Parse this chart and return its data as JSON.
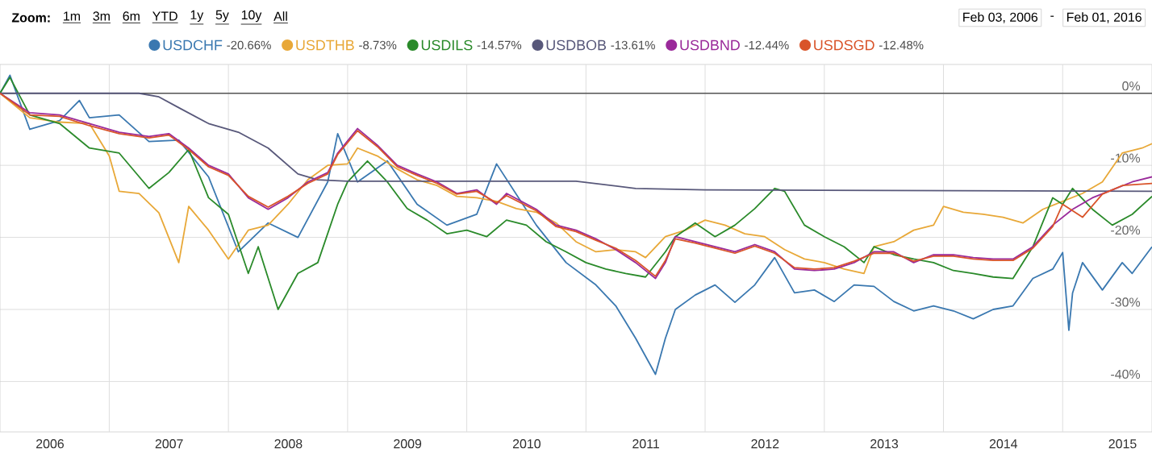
{
  "chart_data": {
    "type": "line",
    "xlim": [
      "2006-02",
      "2015-10"
    ],
    "ylim": [
      -47,
      4
    ],
    "xticks": [
      {
        "value": "2006-07-02",
        "label": "2006"
      },
      {
        "value": "2007-07-02",
        "label": "2007"
      },
      {
        "value": "2008-07-02",
        "label": "2008"
      },
      {
        "value": "2009-07-02",
        "label": "2009"
      },
      {
        "value": "2010-07-02",
        "label": "2010"
      },
      {
        "value": "2011-07-02",
        "label": "2011"
      },
      {
        "value": "2012-07-02",
        "label": "2012"
      },
      {
        "value": "2013-07-02",
        "label": "2013"
      },
      {
        "value": "2014-07-02",
        "label": "2014"
      },
      {
        "value": "2015-07-02",
        "label": "2015"
      },
      {
        "value": "2007-01-01",
        "label": null
      },
      {
        "value": "2008-01-01",
        "label": null
      },
      {
        "value": "2009-01-01",
        "label": null
      },
      {
        "value": "2010-01-01",
        "label": null
      },
      {
        "value": "2011-01-01",
        "label": null
      },
      {
        "value": "2012-01-01",
        "label": null
      },
      {
        "value": "2013-01-01",
        "label": null
      },
      {
        "value": "2014-01-01",
        "label": null
      },
      {
        "value": "2015-01-01",
        "label": null
      }
    ],
    "yticks": [
      {
        "value": 0,
        "label": "0%"
      },
      {
        "value": -10,
        "label": "-10%"
      },
      {
        "value": -20,
        "label": "-20%"
      },
      {
        "value": -30,
        "label": "-30%"
      },
      {
        "value": -40,
        "label": "-40%"
      }
    ],
    "grid": true,
    "legend": "top",
    "marker": "none",
    "line_style": "solid",
    "ref_lines": [
      {
        "axis": "y",
        "value": 0,
        "color": "#555555"
      }
    ],
    "annotations": [
      "-20.66%",
      "-8.73%",
      "-14.57%",
      "-13.61%",
      "-12.44%",
      "-12.48%",
      "Zoom:",
      "1m",
      "3m",
      "6m",
      "YTD",
      "1y",
      "5y",
      "10y",
      "All",
      "Feb 03, 2006",
      "-",
      "Feb 01, 2016"
    ],
    "series": [
      {
        "name": "USDCHF",
        "color": "#3a78b0",
        "x": [
          "2006-02",
          "2006-03",
          "2006-05",
          "2006-08",
          "2006-10",
          "2006-11",
          "2007-02",
          "2007-05",
          "2007-08",
          "2007-11",
          "2008-02",
          "2008-05",
          "2008-08",
          "2008-11",
          "2008-12",
          "2009-02",
          "2009-05",
          "2009-08",
          "2009-11",
          "2010-02",
          "2010-04",
          "2010-08",
          "2010-11",
          "2011-02",
          "2011-04",
          "2011-06",
          "2011-08",
          "2011-09",
          "2011-10",
          "2011-12",
          "2012-02",
          "2012-04",
          "2012-06",
          "2012-08",
          "2012-10",
          "2012-12",
          "2013-02",
          "2013-04",
          "2013-06",
          "2013-08",
          "2013-10",
          "2013-12",
          "2014-02",
          "2014-04",
          "2014-06",
          "2014-08",
          "2014-10",
          "2014-12",
          "2015-01",
          "2015-01-20",
          "2015-02",
          "2015-03",
          "2015-05",
          "2015-07",
          "2015-08",
          "2015-10"
        ],
        "values": [
          0,
          2.5,
          -5,
          -3.8,
          -1,
          -3.4,
          -3,
          -6.7,
          -6.5,
          -11.6,
          -22,
          -18,
          -20,
          -12.3,
          -5.6,
          -12.3,
          -9.4,
          -15.4,
          -18.3,
          -16.8,
          -9.8,
          -18.3,
          -23.5,
          -26.6,
          -29.5,
          -34,
          -39,
          -34,
          -30,
          -28,
          -26.6,
          -29,
          -26.6,
          -22.8,
          -27.7,
          -27.3,
          -28.9,
          -26.6,
          -26.8,
          -28.9,
          -30.2,
          -29.5,
          -30.2,
          -31.3,
          -30,
          -29.5,
          -25.7,
          -24.4,
          -22.1,
          -32.9,
          -27.7,
          -23.5,
          -27.3,
          -23.5,
          -25,
          -21.3
        ]
      },
      {
        "name": "USDTHB",
        "color": "#e8a838",
        "x": [
          "2006-02",
          "2006-05",
          "2006-08",
          "2006-11",
          "2007-01",
          "2007-02",
          "2007-04",
          "2007-06",
          "2007-08",
          "2007-09",
          "2007-11",
          "2008-01",
          "2008-03",
          "2008-05",
          "2008-07",
          "2008-09",
          "2008-11",
          "2009-01",
          "2009-02",
          "2009-04",
          "2009-06",
          "2009-08",
          "2009-10",
          "2009-12",
          "2010-02",
          "2010-04",
          "2010-06",
          "2010-08",
          "2010-10",
          "2010-12",
          "2011-02",
          "2011-04",
          "2011-06",
          "2011-07",
          "2011-09",
          "2011-11",
          "2012-01",
          "2012-03",
          "2012-05",
          "2012-07",
          "2012-09",
          "2012-11",
          "2013-01",
          "2013-03",
          "2013-05",
          "2013-06",
          "2013-08",
          "2013-10",
          "2013-12",
          "2014-01",
          "2014-03",
          "2014-05",
          "2014-07",
          "2014-09",
          "2014-11",
          "2015-01",
          "2015-03",
          "2015-05",
          "2015-07",
          "2015-09",
          "2015-10"
        ],
        "values": [
          0,
          -3.4,
          -4,
          -4.2,
          -8.7,
          -13.6,
          -13.9,
          -16.6,
          -23.5,
          -15.7,
          -19,
          -23,
          -19,
          -18.3,
          -15.4,
          -12,
          -10,
          -9.8,
          -7.6,
          -8.7,
          -10.5,
          -12,
          -12.8,
          -14.3,
          -14.5,
          -15,
          -16,
          -16.5,
          -18,
          -20.6,
          -22,
          -21.7,
          -22,
          -22.8,
          -19.9,
          -19,
          -17.6,
          -18.3,
          -19.5,
          -19.9,
          -21.7,
          -23,
          -23.5,
          -24.4,
          -25,
          -21.3,
          -20.6,
          -19,
          -18.3,
          -15.7,
          -16.5,
          -16.8,
          -17.2,
          -18,
          -16.1,
          -15,
          -13.9,
          -12.3,
          -8.3,
          -7.6,
          -7
        ]
      },
      {
        "name": "USDILS",
        "color": "#2a8a2a",
        "x": [
          "2006-02",
          "2006-03",
          "2006-05",
          "2006-08",
          "2006-11",
          "2007-02",
          "2007-05",
          "2007-07",
          "2007-09",
          "2007-11",
          "2008-01",
          "2008-03",
          "2008-04",
          "2008-06",
          "2008-08",
          "2008-10",
          "2008-12",
          "2009-01",
          "2009-03",
          "2009-05",
          "2009-07",
          "2009-09",
          "2009-11",
          "2010-01",
          "2010-03",
          "2010-05",
          "2010-07",
          "2010-09",
          "2010-11",
          "2011-01",
          "2011-03",
          "2011-05",
          "2011-07",
          "2011-09",
          "2011-10",
          "2011-12",
          "2012-02",
          "2012-04",
          "2012-06",
          "2012-08",
          "2012-09",
          "2012-11",
          "2013-01",
          "2013-03",
          "2013-05",
          "2013-06",
          "2013-08",
          "2013-10",
          "2013-12",
          "2014-02",
          "2014-04",
          "2014-06",
          "2014-08",
          "2014-10",
          "2014-12",
          "2015-01",
          "2015-02",
          "2015-04",
          "2015-06",
          "2015-08",
          "2015-10"
        ],
        "values": [
          0,
          2.2,
          -3,
          -4.2,
          -7.6,
          -8.3,
          -13.2,
          -11,
          -7.8,
          -14.5,
          -16.8,
          -25,
          -21.3,
          -30,
          -25,
          -23.5,
          -15.4,
          -12.3,
          -9.4,
          -12.3,
          -16,
          -17.6,
          -19.5,
          -19,
          -19.9,
          -17.6,
          -18.3,
          -20.6,
          -22,
          -23.5,
          -24.4,
          -25,
          -25.5,
          -22,
          -19.9,
          -18,
          -19.9,
          -18.3,
          -16,
          -13.2,
          -13.6,
          -18.3,
          -19.9,
          -21.3,
          -23.5,
          -21.3,
          -22.4,
          -23,
          -23.5,
          -24.6,
          -25,
          -25.5,
          -25.7,
          -21.3,
          -14.5,
          -15.4,
          -13.2,
          -16.1,
          -18.3,
          -16.8,
          -14.3
        ]
      },
      {
        "name": "USDBOB",
        "color": "#58587a",
        "x": [
          "2006-02",
          "2007-04",
          "2007-06",
          "2007-08",
          "2007-11",
          "2008-02",
          "2008-05",
          "2008-08",
          "2008-10",
          "2009-01",
          "2010-12",
          "2011-06",
          "2012-01",
          "2015-10"
        ],
        "values": [
          0,
          0,
          -0.5,
          -2,
          -4.2,
          -5.4,
          -7.6,
          -11.2,
          -12,
          -12.2,
          -12.2,
          -13.2,
          -13.4,
          -13.6
        ]
      },
      {
        "name": "USDBND",
        "color": "#9a2a9a",
        "x": [
          "2006-02",
          "2006-05",
          "2006-08",
          "2006-11",
          "2007-02",
          "2007-05",
          "2007-07",
          "2007-09",
          "2007-11",
          "2008-01",
          "2008-03",
          "2008-05",
          "2008-07",
          "2008-09",
          "2008-11",
          "2008-12",
          "2009-02",
          "2009-04",
          "2009-06",
          "2009-08",
          "2009-10",
          "2009-12",
          "2010-02",
          "2010-04",
          "2010-05",
          "2010-08",
          "2010-10",
          "2010-12",
          "2011-02",
          "2011-04",
          "2011-06",
          "2011-08",
          "2011-09",
          "2011-10",
          "2011-12",
          "2012-02",
          "2012-04",
          "2012-06",
          "2012-08",
          "2012-10",
          "2012-12",
          "2013-02",
          "2013-04",
          "2013-06",
          "2013-08",
          "2013-10",
          "2013-12",
          "2014-02",
          "2014-04",
          "2014-06",
          "2014-08",
          "2014-10",
          "2014-12",
          "2015-02",
          "2015-04",
          "2015-06",
          "2015-08",
          "2015-10"
        ],
        "values": [
          0,
          -2.7,
          -3,
          -4.2,
          -5.4,
          -6,
          -5.6,
          -7.6,
          -10,
          -11.2,
          -14.5,
          -16.1,
          -14.5,
          -12.3,
          -11,
          -8.3,
          -4.9,
          -7.2,
          -10,
          -11.2,
          -12.3,
          -13.9,
          -13.4,
          -15.4,
          -13.9,
          -16.1,
          -18.3,
          -19,
          -20.2,
          -21.7,
          -23.5,
          -25.7,
          -23.5,
          -19.9,
          -20.6,
          -21.3,
          -22,
          -21,
          -22,
          -24.4,
          -24.6,
          -24.4,
          -23.5,
          -22,
          -22,
          -23.5,
          -22.4,
          -22.4,
          -22.8,
          -23,
          -23,
          -21.3,
          -18.3,
          -16.1,
          -14.5,
          -13.4,
          -12.3,
          -11.6
        ]
      },
      {
        "name": "USDSGD",
        "color": "#d9542a",
        "x": [
          "2006-02",
          "2006-05",
          "2006-08",
          "2006-11",
          "2007-02",
          "2007-05",
          "2007-07",
          "2007-09",
          "2007-11",
          "2008-01",
          "2008-03",
          "2008-05",
          "2008-07",
          "2008-09",
          "2008-11",
          "2008-12",
          "2009-02",
          "2009-04",
          "2009-06",
          "2009-08",
          "2009-10",
          "2009-12",
          "2010-02",
          "2010-04",
          "2010-05",
          "2010-08",
          "2010-10",
          "2010-12",
          "2011-02",
          "2011-04",
          "2011-06",
          "2011-08",
          "2011-09",
          "2011-10",
          "2011-12",
          "2012-02",
          "2012-04",
          "2012-06",
          "2012-08",
          "2012-10",
          "2012-12",
          "2013-02",
          "2013-04",
          "2013-06",
          "2013-08",
          "2013-10",
          "2013-12",
          "2014-02",
          "2014-04",
          "2014-06",
          "2014-08",
          "2014-10",
          "2014-12",
          "2015-01",
          "2015-03",
          "2015-05",
          "2015-07",
          "2015-10"
        ],
        "values": [
          0,
          -3,
          -3.2,
          -4.5,
          -5.6,
          -6.2,
          -5.8,
          -7.8,
          -10.2,
          -11.4,
          -14.3,
          -15.8,
          -14.3,
          -12.5,
          -11.2,
          -8.5,
          -5.2,
          -7.4,
          -10.2,
          -11.4,
          -12.5,
          -14,
          -13.6,
          -15.2,
          -14.2,
          -16.3,
          -18.5,
          -19.2,
          -20.4,
          -21.5,
          -23.2,
          -25.4,
          -23.2,
          -20.2,
          -20.8,
          -21.5,
          -22.2,
          -21.2,
          -22.2,
          -24.2,
          -24.4,
          -24.2,
          -23.3,
          -22.2,
          -22.2,
          -23.3,
          -22.6,
          -22.6,
          -23,
          -23.2,
          -23.2,
          -21.5,
          -18.5,
          -15.4,
          -17.2,
          -14,
          -12.8,
          -12.5
        ]
      }
    ]
  }
}
